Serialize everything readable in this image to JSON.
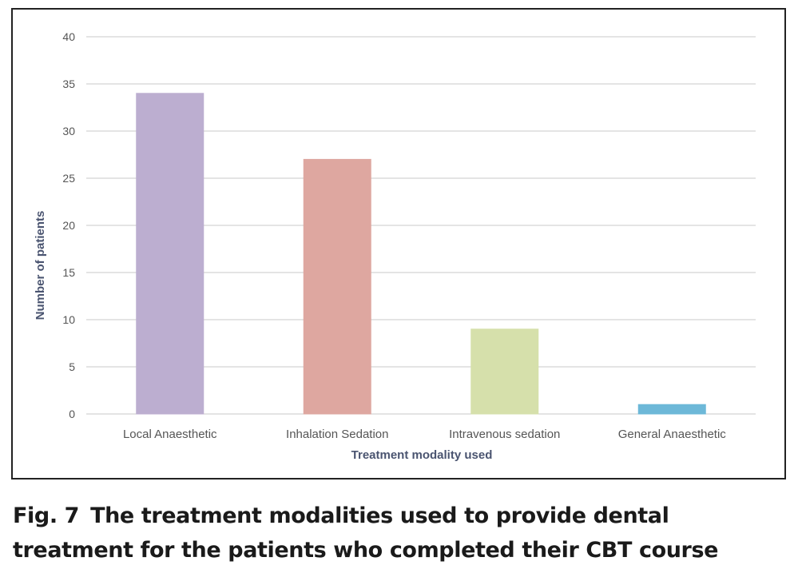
{
  "chart_data": {
    "type": "bar",
    "categories": [
      "Local Anaesthetic",
      "Inhalation Sedation",
      "Intravenous sedation",
      "General Anaesthetic"
    ],
    "values": [
      34,
      27,
      9,
      1
    ],
    "colors": [
      "#bcaed0",
      "#dea7a0",
      "#d6e0ab",
      "#6db8d8"
    ],
    "xlabel": "Treatment modality used",
    "ylabel": "Number of patients",
    "ylim": [
      0,
      40
    ],
    "yticks": [
      0,
      5,
      10,
      15,
      20,
      25,
      30,
      35,
      40
    ],
    "grid": true,
    "grid_color": "#c8c8c8",
    "axis_label_color": "#4a5470",
    "tick_label_color": "#555555"
  },
  "caption": {
    "label": "Fig. 7",
    "text": "The treatment modalities used to provide dental treatment for the patients who completed their CBT course"
  }
}
